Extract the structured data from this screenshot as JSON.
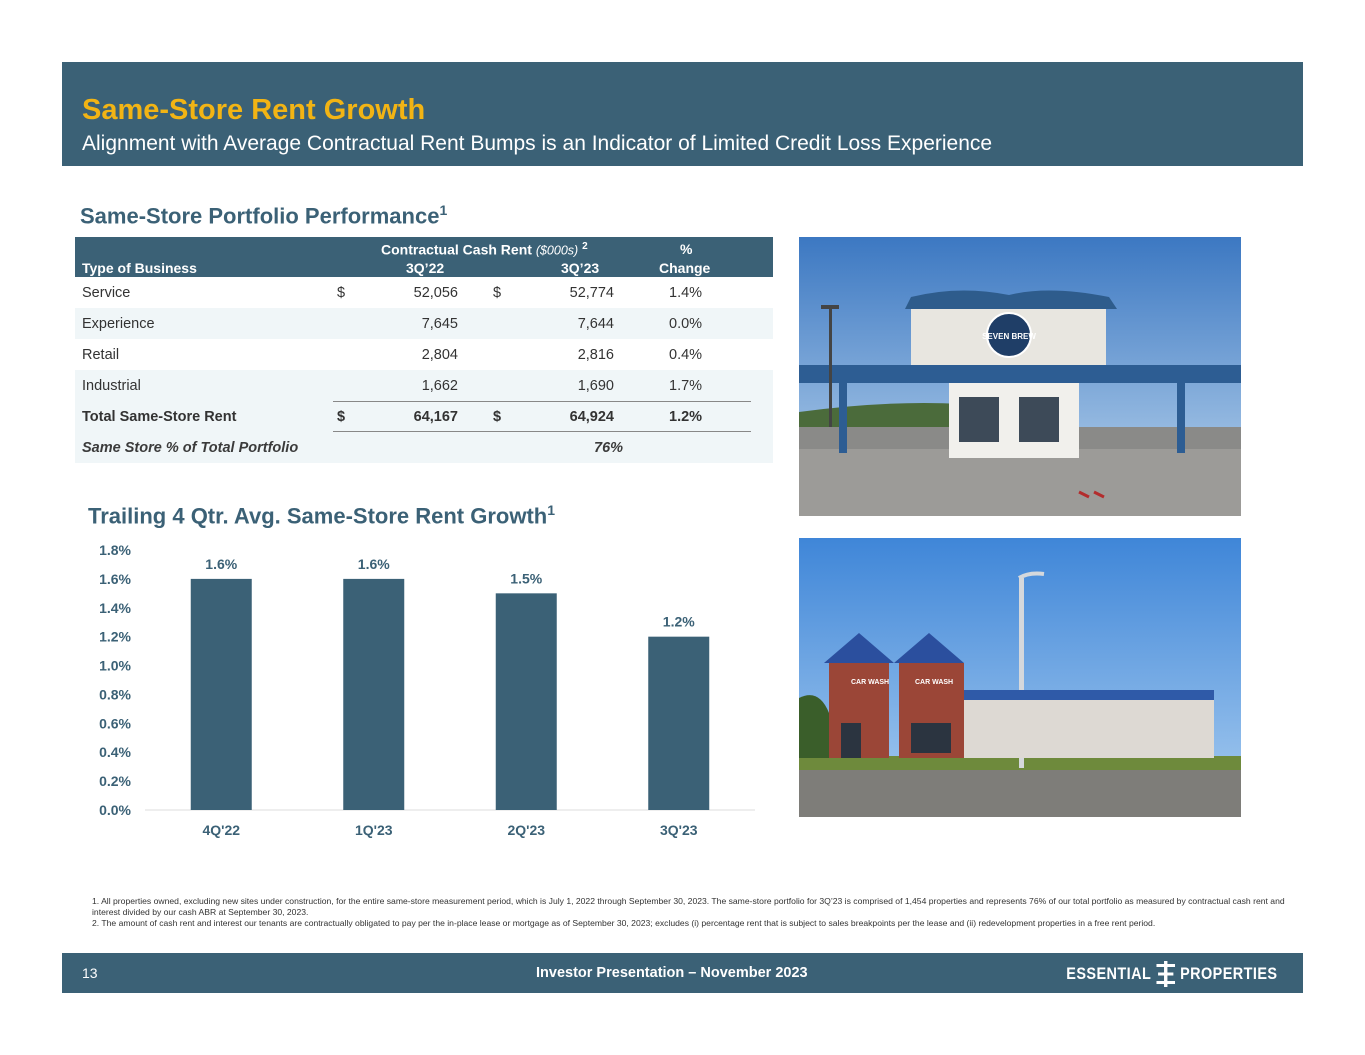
{
  "header": {
    "title": "Same-Store Rent Growth",
    "subtitle": "Alignment with Average Contractual Rent Bumps is an Indicator of Limited Credit Loss Experience"
  },
  "table_section": {
    "title": "Same-Store Portfolio Performance",
    "sup": "1"
  },
  "table": {
    "header": {
      "type": "Type of Business",
      "group_label": "Contractual Cash Rent",
      "group_unit": "($000s)",
      "group_sup": "2",
      "col1": "3Q’22",
      "col2": "3Q’23",
      "pct_top": "%",
      "pct_bottom": "Change"
    },
    "rows": [
      {
        "type": "Service",
        "cur1": "$",
        "v1": "52,056",
        "cur2": "$",
        "v2": "52,774",
        "pct": "1.4%"
      },
      {
        "type": "Experience",
        "cur1": "",
        "v1": "7,645",
        "cur2": "",
        "v2": "7,644",
        "pct": "0.0%"
      },
      {
        "type": "Retail",
        "cur1": "",
        "v1": "2,804",
        "cur2": "",
        "v2": "2,816",
        "pct": "0.4%"
      },
      {
        "type": "Industrial",
        "cur1": "",
        "v1": "1,662",
        "cur2": "",
        "v2": "1,690",
        "pct": "1.7%"
      }
    ],
    "total": {
      "type": "Total Same-Store Rent",
      "cur1": "$",
      "v1": "64,167",
      "cur2": "$",
      "v2": "64,924",
      "pct": "1.2%"
    },
    "same_store": {
      "label": "Same Store % of Total Portfolio",
      "value": "76%"
    }
  },
  "chart_section": {
    "title": "Trailing 4 Qtr. Avg. Same-Store Rent Growth",
    "sup": "1"
  },
  "chart_data": {
    "type": "bar",
    "categories": [
      "4Q'22",
      "1Q'23",
      "2Q'23",
      "3Q'23"
    ],
    "values": [
      1.6,
      1.6,
      1.5,
      1.2
    ],
    "data_labels": [
      "1.6%",
      "1.6%",
      "1.5%",
      "1.2%"
    ],
    "ylim": [
      0,
      1.8
    ],
    "yticks": [
      "0.0%",
      "0.2%",
      "0.4%",
      "0.6%",
      "0.8%",
      "1.0%",
      "1.2%",
      "1.4%",
      "1.6%",
      "1.8%"
    ],
    "bar_color": "#3b6176",
    "grid": false
  },
  "photos": {
    "top_sign": "SEVEN BREW",
    "bottom_sign_left": "CAR WASH",
    "bottom_sign_right": "CAR WASH"
  },
  "footnotes": [
    "1. All properties owned, excluding new sites under construction, for the entire same-store measurement period, which is July 1, 2022 through September 30, 2023. The same-store portfolio for 3Q’23 is comprised of 1,454 properties and represents 76% of our total portfolio as measured by contractual cash rent and interest divided by our cash ABR at September 30, 2023.",
    "2. The amount of cash rent and interest our tenants are contractually obligated to pay per the in-place lease or mortgage as of September 30, 2023; excludes (i) percentage rent that is subject to sales breakpoints per the lease and (ii) redevelopment properties in a free rent period."
  ],
  "footer": {
    "page": "13",
    "center": "Investor Presentation – November 2023",
    "logo_left": "ESSENTIAL",
    "logo_right": "PROPERTIES"
  },
  "colors": {
    "brand": "#3b6176",
    "accent": "#f2b414",
    "row_alt": "#f0f6f8"
  }
}
